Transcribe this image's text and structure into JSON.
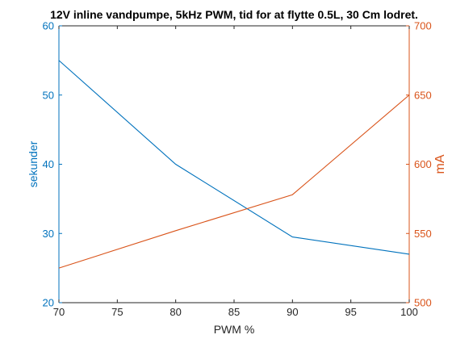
{
  "chart_data": {
    "type": "line",
    "title": "12V inline vandpumpe, 5kHz PWM, tid for at flytte 0.5L, 30 Cm lodret.",
    "xlabel": "PWM %",
    "x": [
      70,
      80,
      90,
      100
    ],
    "xlim": [
      70,
      100
    ],
    "xticks": [
      70,
      75,
      80,
      85,
      90,
      95,
      100
    ],
    "y_left": {
      "label": "sekunder",
      "lim": [
        20,
        60
      ],
      "ticks": [
        20,
        30,
        40,
        50,
        60
      ],
      "color": "#0072bd"
    },
    "y_right": {
      "label": "mA",
      "lim": [
        500,
        700
      ],
      "ticks": [
        500,
        550,
        600,
        650,
        700
      ],
      "color": "#d95319"
    },
    "series": [
      {
        "axis": "left",
        "values": [
          55,
          40,
          29.5,
          27
        ],
        "color": "#0072bd"
      },
      {
        "axis": "right",
        "values": [
          525,
          552,
          578,
          650
        ],
        "color": "#d95319"
      }
    ],
    "grid": false,
    "legend": false
  }
}
